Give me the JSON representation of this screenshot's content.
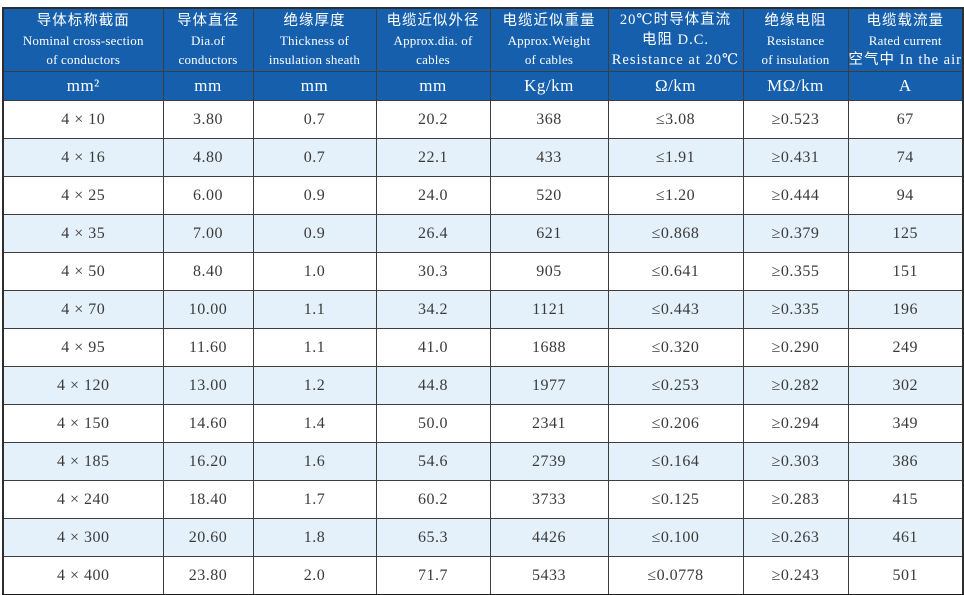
{
  "colors": {
    "header_blue": "#155fad",
    "stripe_blue": "#e4f1fa",
    "grid_line": "#3d3d3d",
    "header_text": "#ffffff",
    "cell_text": "#3a3a3a"
  },
  "table": {
    "columns": [
      {
        "lines": [
          "导体标称截面",
          "Nominal cross-section",
          "of conductors"
        ],
        "unit": "mm²"
      },
      {
        "lines": [
          "导体直径",
          "Dia.of",
          "conductors"
        ],
        "unit": "mm"
      },
      {
        "lines": [
          "绝缘厚度",
          "Thickness of",
          "insulation sheath"
        ],
        "unit": "mm"
      },
      {
        "lines": [
          "电缆近似外径",
          "Approx.dia. of",
          "cables"
        ],
        "unit": "mm"
      },
      {
        "lines": [
          "电缆近似重量",
          "Approx.Weight",
          "of cables"
        ],
        "unit": "Kg/km"
      },
      {
        "lines": [
          "20℃时导体直流",
          "电阻 D.C.",
          "Resistance at 20℃"
        ],
        "unit": "Ω/km"
      },
      {
        "lines": [
          "绝缘电阻",
          "Resistance",
          "of insulation"
        ],
        "unit": "MΩ/km"
      },
      {
        "lines": [
          "电缆载流量",
          "Rated current",
          "空气中 In the air"
        ],
        "unit": "A"
      }
    ],
    "rows": [
      [
        "4 × 10",
        "3.80",
        "0.7",
        "20.2",
        "368",
        "≤3.08",
        "≥0.523",
        "67"
      ],
      [
        "4 × 16",
        "4.80",
        "0.7",
        "22.1",
        "433",
        "≤1.91",
        "≥0.431",
        "74"
      ],
      [
        "4 × 25",
        "6.00",
        "0.9",
        "24.0",
        "520",
        "≤1.20",
        "≥0.444",
        "94"
      ],
      [
        "4 × 35",
        "7.00",
        "0.9",
        "26.4",
        "621",
        "≤0.868",
        "≥0.379",
        "125"
      ],
      [
        "4 × 50",
        "8.40",
        "1.0",
        "30.3",
        "905",
        "≤0.641",
        "≥0.355",
        "151"
      ],
      [
        "4 × 70",
        "10.00",
        "1.1",
        "34.2",
        "1121",
        "≤0.443",
        "≥0.335",
        "196"
      ],
      [
        "4 × 95",
        "11.60",
        "1.1",
        "41.0",
        "1688",
        "≤0.320",
        "≥0.290",
        "249"
      ],
      [
        "4 × 120",
        "13.00",
        "1.2",
        "44.8",
        "1977",
        "≤0.253",
        "≥0.282",
        "302"
      ],
      [
        "4 × 150",
        "14.60",
        "1.4",
        "50.0",
        "2341",
        "≤0.206",
        "≥0.294",
        "349"
      ],
      [
        "4 × 185",
        "16.20",
        "1.6",
        "54.6",
        "2739",
        "≤0.164",
        "≥0.303",
        "386"
      ],
      [
        "4 × 240",
        "18.40",
        "1.7",
        "60.2",
        "3733",
        "≤0.125",
        "≥0.283",
        "415"
      ],
      [
        "4 × 300",
        "20.60",
        "1.8",
        "65.3",
        "4426",
        "≤0.100",
        "≥0.263",
        "461"
      ],
      [
        "4 × 400",
        "23.80",
        "2.0",
        "71.7",
        "5433",
        "≤0.0778",
        "≥0.243",
        "501"
      ]
    ]
  }
}
